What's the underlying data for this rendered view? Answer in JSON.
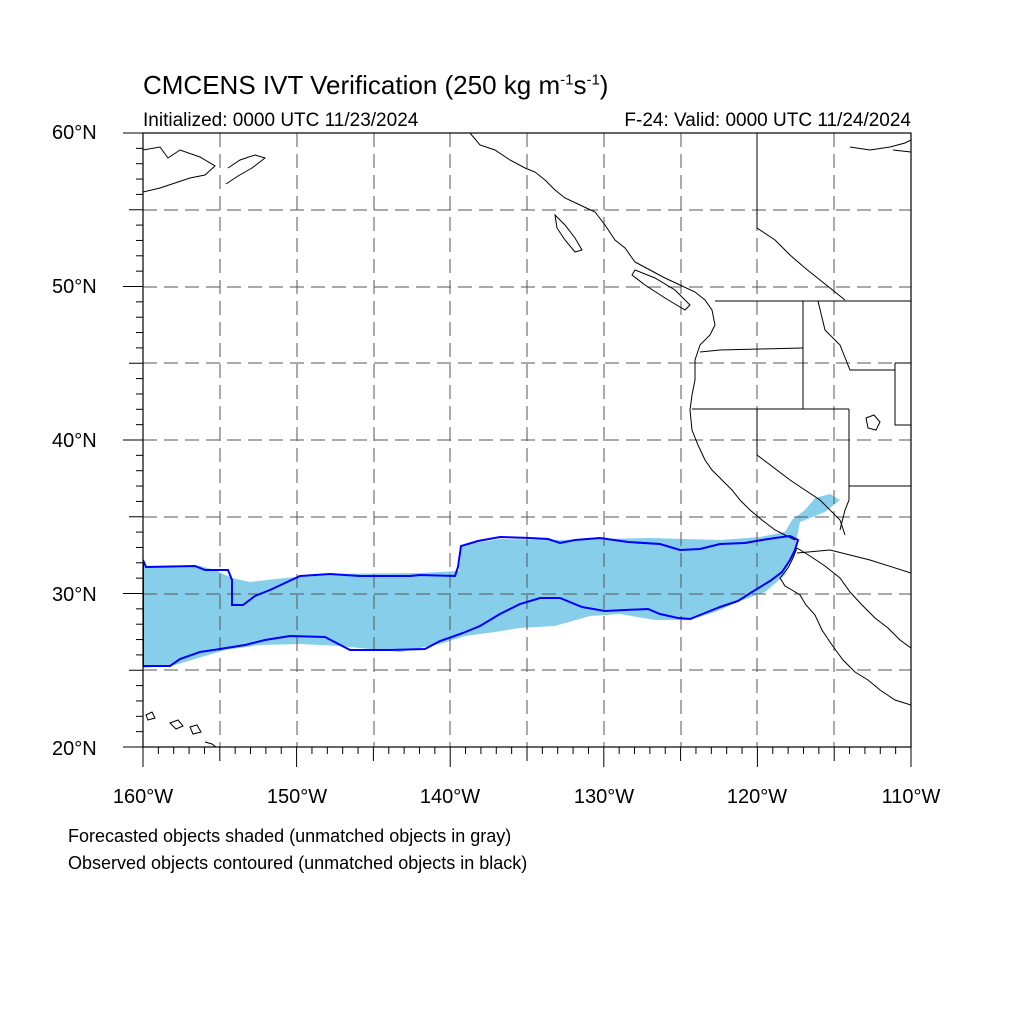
{
  "title": {
    "main": "CMCENS IVT Verification (250 kg m",
    "exp1": "-1",
    "mid": "s",
    "exp2": "-1",
    "close": ")"
  },
  "subtitle_left": "Initialized: 0000 UTC 11/23/2024",
  "subtitle_right": "F-24: Valid: 0000 UTC 11/24/2024",
  "lat_labels": [
    "60°N",
    "50°N",
    "40°N",
    "30°N",
    "20°N"
  ],
  "lon_labels": [
    "160°W",
    "150°W",
    "140°W",
    "130°W",
    "120°W",
    "110°W"
  ],
  "notes": [
    "Forecasted objects shaded (unmatched objects in gray)",
    "Observed objects contoured (unmatched objects in black)"
  ],
  "colors": {
    "forecast_fill": "#87CEEB",
    "observed_contour": "#0000FF",
    "grid": "#555555",
    "coastline": "#000000"
  }
}
